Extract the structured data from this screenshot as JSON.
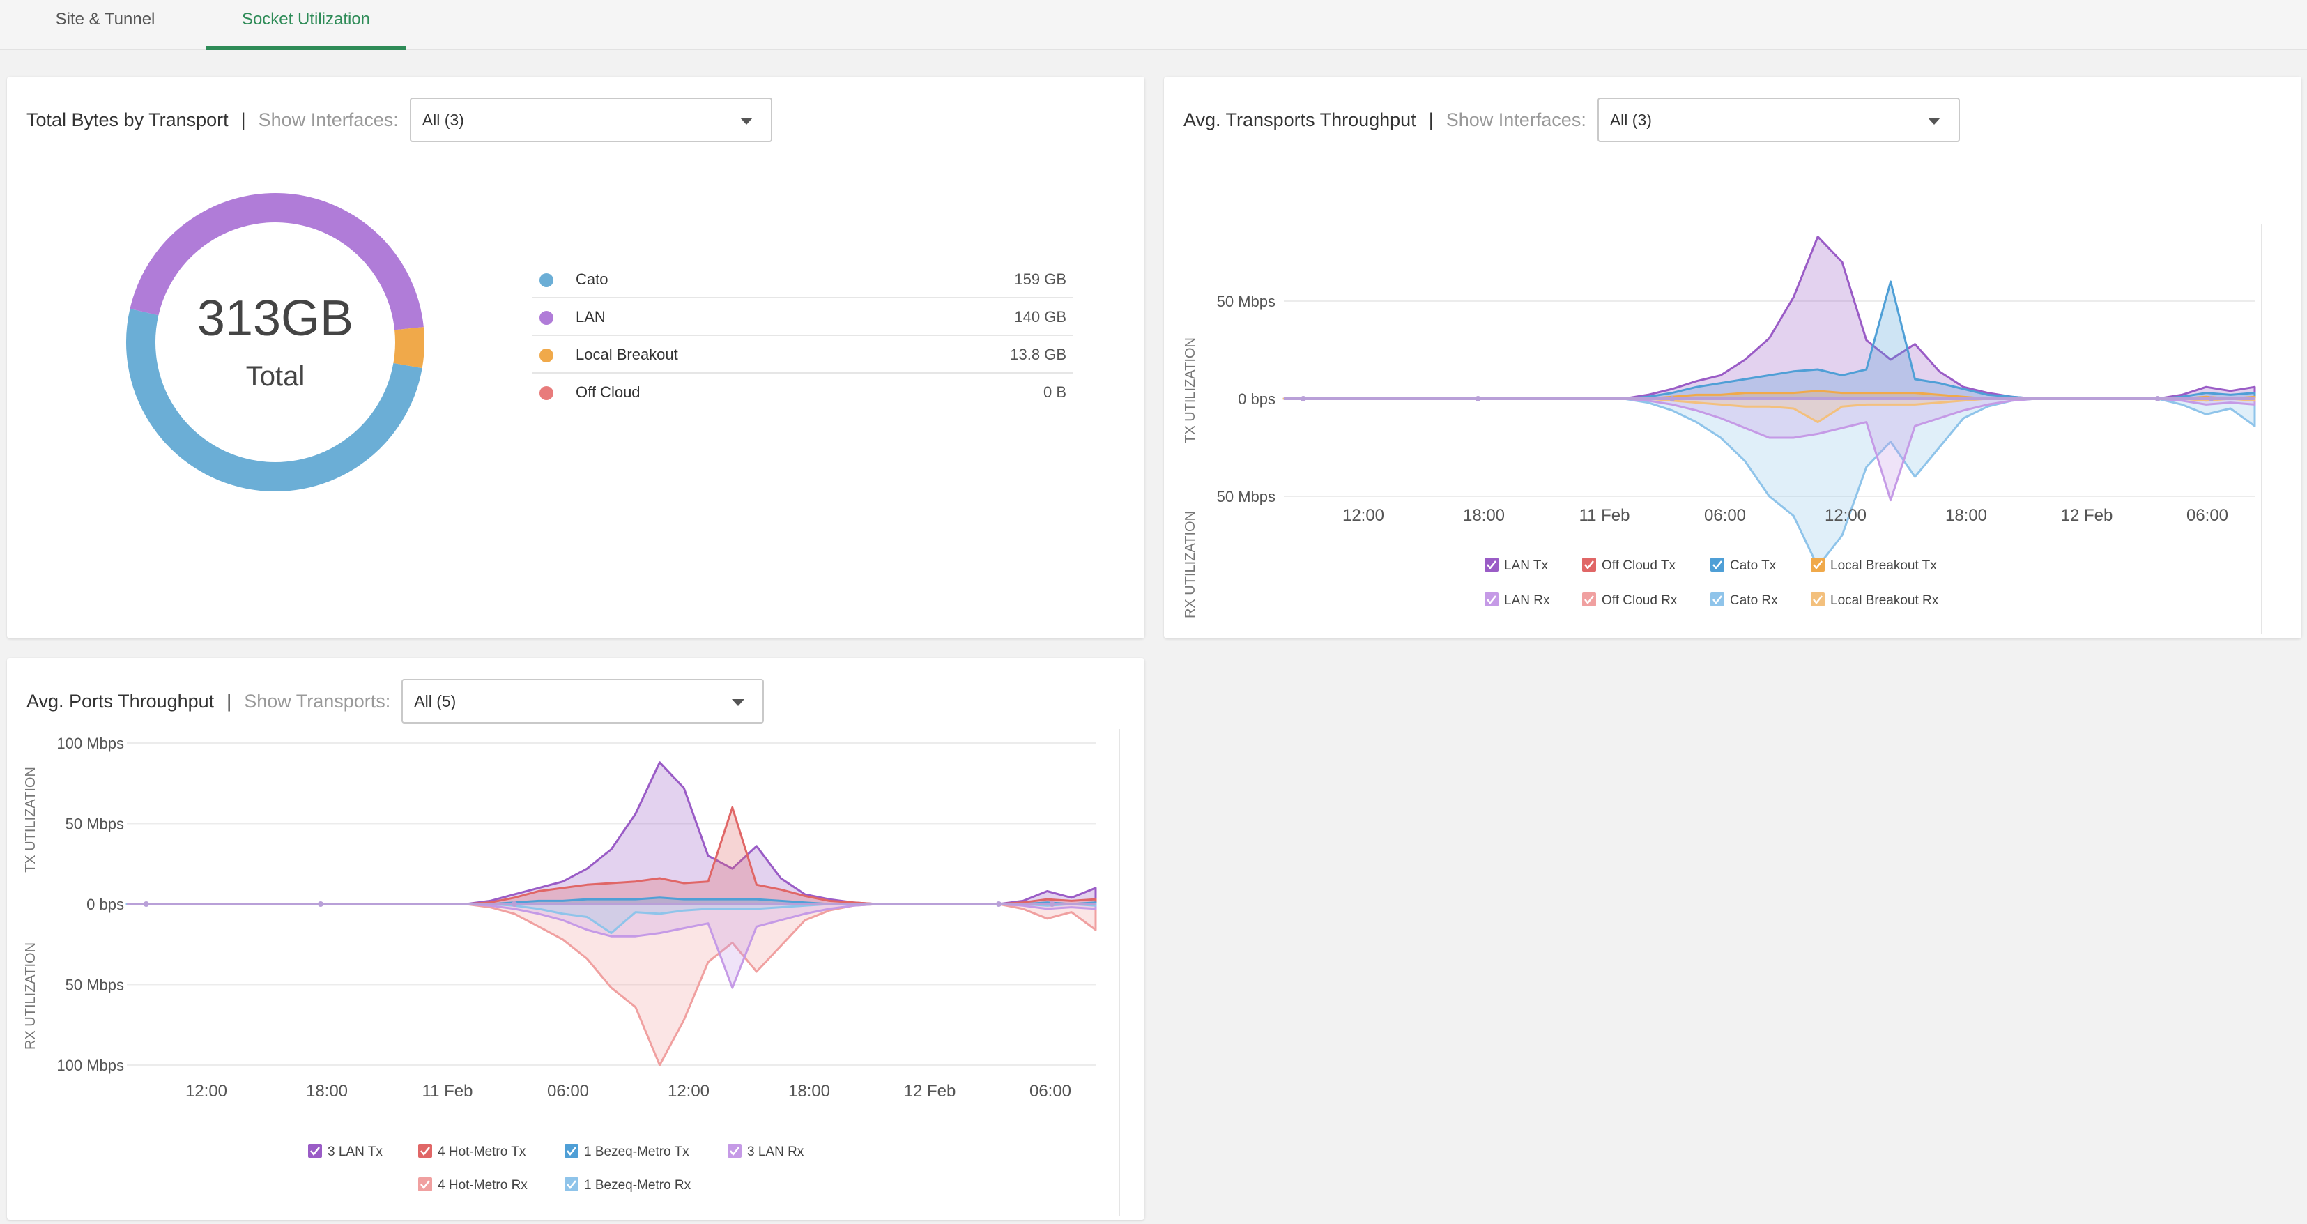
{
  "tabs": [
    {
      "label": "Site & Tunnel",
      "active": false
    },
    {
      "label": "Socket Utilization",
      "active": true
    }
  ],
  "colors": {
    "cato": "#6baed6",
    "lan": "#b07cd8",
    "local_breakout": "#f0a94a",
    "off_cloud": "#e87b7b",
    "lan_dark": "#9a5cc6",
    "hot_metro": "#e06666",
    "bezeq": "#4f9fd6",
    "accent": "#2e8b57"
  },
  "bytes_card": {
    "title": "Total Bytes by Transport",
    "separator": "|",
    "show_label": "Show Interfaces:",
    "select_value": "All (3)",
    "total_value": "313GB",
    "total_label": "Total",
    "legend": [
      {
        "label": "Cato",
        "value": "159 GB",
        "color": "#6baed6"
      },
      {
        "label": "LAN",
        "value": "140 GB",
        "color": "#b07cd8"
      },
      {
        "label": "Local Breakout",
        "value": "13.8 GB",
        "color": "#f0a94a"
      },
      {
        "label": "Off Cloud",
        "value": "0 B",
        "color": "#e87b7b"
      }
    ]
  },
  "transports_card": {
    "title": "Avg. Transports Throughput",
    "separator": "|",
    "show_label": "Show Interfaces:",
    "select_value": "All (3)",
    "tx_axis_label": "TX UTILIZATION",
    "rx_axis_label": "RX UTILIZATION",
    "legend": [
      {
        "label": "LAN Tx",
        "color": "#9a5cc6"
      },
      {
        "label": "Off Cloud Tx",
        "color": "#e06666"
      },
      {
        "label": "Cato Tx",
        "color": "#4f9fd6"
      },
      {
        "label": "Local Breakout Tx",
        "color": "#f0a94a"
      },
      {
        "label": "LAN Rx",
        "color": "#c59ae6"
      },
      {
        "label": "Off Cloud Rx",
        "color": "#f0a0a0"
      },
      {
        "label": "Cato Rx",
        "color": "#8fc4ea"
      },
      {
        "label": "Local Breakout Rx",
        "color": "#f3c07d"
      }
    ]
  },
  "ports_card": {
    "title": "Avg. Ports Throughput",
    "separator": "|",
    "show_label": "Show Transports:",
    "select_value": "All (5)",
    "tx_axis_label": "TX UTILIZATION",
    "rx_axis_label": "RX UTILIZATION",
    "legend": [
      {
        "label": "3 LAN Tx",
        "color": "#9a5cc6"
      },
      {
        "label": "4 Hot-Metro Tx",
        "color": "#e06666"
      },
      {
        "label": "1 Bezeq-Metro Tx",
        "color": "#4f9fd6"
      },
      {
        "label": "3 LAN Rx",
        "color": "#c59ae6"
      },
      {
        "label": "4 Hot-Metro Rx",
        "color": "#f0a0a0"
      },
      {
        "label": "1 Bezeq-Metro Rx",
        "color": "#8fc4ea"
      }
    ]
  },
  "chart_data": [
    {
      "type": "pie",
      "title": "Total Bytes by Transport",
      "categories": [
        "Cato",
        "LAN",
        "Local Breakout",
        "Off Cloud"
      ],
      "values": [
        159,
        140,
        13.8,
        0
      ],
      "unit": "GB",
      "total": "313GB"
    },
    {
      "type": "area",
      "title": "Avg. Transports Throughput",
      "y_ticks_tx": [
        "50 Mbps",
        "0 bps"
      ],
      "y_ticks_rx": [
        "50 Mbps"
      ],
      "x_ticks": [
        "12:00",
        "18:00",
        "11 Feb",
        "06:00",
        "12:00",
        "18:00",
        "12 Feb",
        "06:00"
      ],
      "ylim": [
        -75,
        75
      ],
      "unit": "Mbps",
      "x": [
        0,
        1,
        2,
        3,
        4,
        5,
        6,
        7,
        8,
        9,
        10,
        11,
        12,
        13,
        14,
        15,
        16,
        17,
        18,
        19,
        20,
        21,
        22,
        23,
        24,
        25,
        26,
        27,
        28,
        29,
        30,
        31,
        32,
        33,
        34,
        35,
        36,
        37,
        38,
        39,
        40
      ],
      "series": [
        {
          "name": "LAN Tx",
          "values": [
            0,
            0,
            0,
            0,
            0,
            0,
            0,
            0,
            0,
            0,
            0,
            0,
            0,
            0,
            0,
            2,
            5,
            9,
            12,
            20,
            31,
            52,
            83,
            70,
            30,
            20,
            28,
            14,
            6,
            3,
            1,
            0,
            0,
            0,
            0,
            0,
            0,
            2,
            6,
            4,
            6
          ]
        },
        {
          "name": "Cato Tx",
          "values": [
            0,
            0,
            0,
            0,
            0,
            0,
            0,
            0,
            0,
            0,
            0,
            0,
            0,
            0,
            0,
            1,
            3,
            6,
            8,
            10,
            12,
            14,
            15,
            12,
            15,
            60,
            10,
            8,
            5,
            2,
            1,
            0,
            0,
            0,
            0,
            0,
            0,
            1,
            3,
            2,
            3
          ]
        },
        {
          "name": "Local Breakout Tx",
          "values": [
            0,
            0,
            0,
            0,
            0,
            0,
            0,
            0,
            0,
            0,
            0,
            0,
            0,
            0,
            0,
            0,
            1,
            2,
            2,
            3,
            3,
            3,
            4,
            3,
            3,
            3,
            3,
            2,
            1,
            0,
            0,
            0,
            0,
            0,
            0,
            0,
            0,
            0,
            1,
            0,
            1
          ]
        },
        {
          "name": "Cato Rx",
          "values": [
            0,
            0,
            0,
            0,
            0,
            0,
            0,
            0,
            0,
            0,
            0,
            0,
            0,
            0,
            0,
            2,
            6,
            12,
            20,
            32,
            50,
            60,
            86,
            70,
            35,
            22,
            40,
            25,
            10,
            4,
            1,
            0,
            0,
            0,
            0,
            0,
            0,
            3,
            8,
            5,
            14
          ]
        },
        {
          "name": "LAN Rx",
          "values": [
            0,
            0,
            0,
            0,
            0,
            0,
            0,
            0,
            0,
            0,
            0,
            0,
            0,
            0,
            0,
            1,
            3,
            6,
            10,
            15,
            20,
            20,
            18,
            15,
            12,
            52,
            14,
            10,
            6,
            3,
            1,
            0,
            0,
            0,
            0,
            0,
            0,
            1,
            3,
            2,
            3
          ]
        },
        {
          "name": "Local Breakout Rx",
          "values": [
            0,
            0,
            0,
            0,
            0,
            0,
            0,
            0,
            0,
            0,
            0,
            0,
            0,
            0,
            0,
            0,
            1,
            2,
            3,
            4,
            4,
            5,
            12,
            4,
            3,
            3,
            3,
            2,
            1,
            0,
            0,
            0,
            0,
            0,
            0,
            0,
            0,
            0,
            1,
            0,
            1
          ]
        }
      ]
    },
    {
      "type": "area",
      "title": "Avg. Ports Throughput",
      "y_ticks_tx": [
        "100 Mbps",
        "50 Mbps",
        "0 bps"
      ],
      "y_ticks_rx": [
        "50 Mbps",
        "100 Mbps"
      ],
      "x_ticks": [
        "12:00",
        "18:00",
        "11 Feb",
        "06:00",
        "12:00",
        "18:00",
        "12 Feb",
        "06:00"
      ],
      "ylim": [
        -100,
        100
      ],
      "unit": "Mbps",
      "x": [
        0,
        1,
        2,
        3,
        4,
        5,
        6,
        7,
        8,
        9,
        10,
        11,
        12,
        13,
        14,
        15,
        16,
        17,
        18,
        19,
        20,
        21,
        22,
        23,
        24,
        25,
        26,
        27,
        28,
        29,
        30,
        31,
        32,
        33,
        34,
        35,
        36,
        37,
        38,
        39,
        40
      ],
      "series": [
        {
          "name": "3 LAN Tx",
          "values": [
            0,
            0,
            0,
            0,
            0,
            0,
            0,
            0,
            0,
            0,
            0,
            0,
            0,
            0,
            0,
            2,
            6,
            10,
            14,
            22,
            34,
            56,
            88,
            72,
            30,
            22,
            36,
            16,
            6,
            3,
            1,
            0,
            0,
            0,
            0,
            0,
            0,
            2,
            8,
            4,
            10
          ]
        },
        {
          "name": "4 Hot-Metro Tx",
          "values": [
            0,
            0,
            0,
            0,
            0,
            0,
            0,
            0,
            0,
            0,
            0,
            0,
            0,
            0,
            0,
            1,
            4,
            8,
            10,
            12,
            13,
            14,
            16,
            13,
            14,
            60,
            12,
            9,
            5,
            2,
            1,
            0,
            0,
            0,
            0,
            0,
            0,
            1,
            3,
            2,
            3
          ]
        },
        {
          "name": "1 Bezeq-Metro Tx",
          "values": [
            0,
            0,
            0,
            0,
            0,
            0,
            0,
            0,
            0,
            0,
            0,
            0,
            0,
            0,
            0,
            0,
            1,
            2,
            2,
            3,
            3,
            3,
            4,
            3,
            3,
            3,
            3,
            2,
            1,
            0,
            0,
            0,
            0,
            0,
            0,
            0,
            0,
            0,
            1,
            0,
            1
          ]
        },
        {
          "name": "4 Hot-Metro Rx",
          "values": [
            0,
            0,
            0,
            0,
            0,
            0,
            0,
            0,
            0,
            0,
            0,
            0,
            0,
            0,
            0,
            2,
            6,
            14,
            22,
            34,
            52,
            64,
            100,
            72,
            36,
            24,
            42,
            26,
            10,
            4,
            1,
            0,
            0,
            0,
            0,
            0,
            0,
            3,
            9,
            5,
            16
          ]
        },
        {
          "name": "3 LAN Rx",
          "values": [
            0,
            0,
            0,
            0,
            0,
            0,
            0,
            0,
            0,
            0,
            0,
            0,
            0,
            0,
            0,
            1,
            3,
            6,
            10,
            16,
            20,
            20,
            18,
            15,
            12,
            52,
            14,
            10,
            6,
            3,
            1,
            0,
            0,
            0,
            0,
            0,
            0,
            1,
            3,
            2,
            3
          ]
        },
        {
          "name": "1 Bezeq-Metro Rx",
          "values": [
            0,
            0,
            0,
            0,
            0,
            0,
            0,
            0,
            0,
            0,
            0,
            0,
            0,
            0,
            0,
            0,
            1,
            3,
            6,
            8,
            18,
            5,
            6,
            4,
            3,
            3,
            3,
            2,
            1,
            0,
            0,
            0,
            0,
            0,
            0,
            0,
            0,
            0,
            1,
            0,
            1
          ]
        }
      ]
    }
  ]
}
